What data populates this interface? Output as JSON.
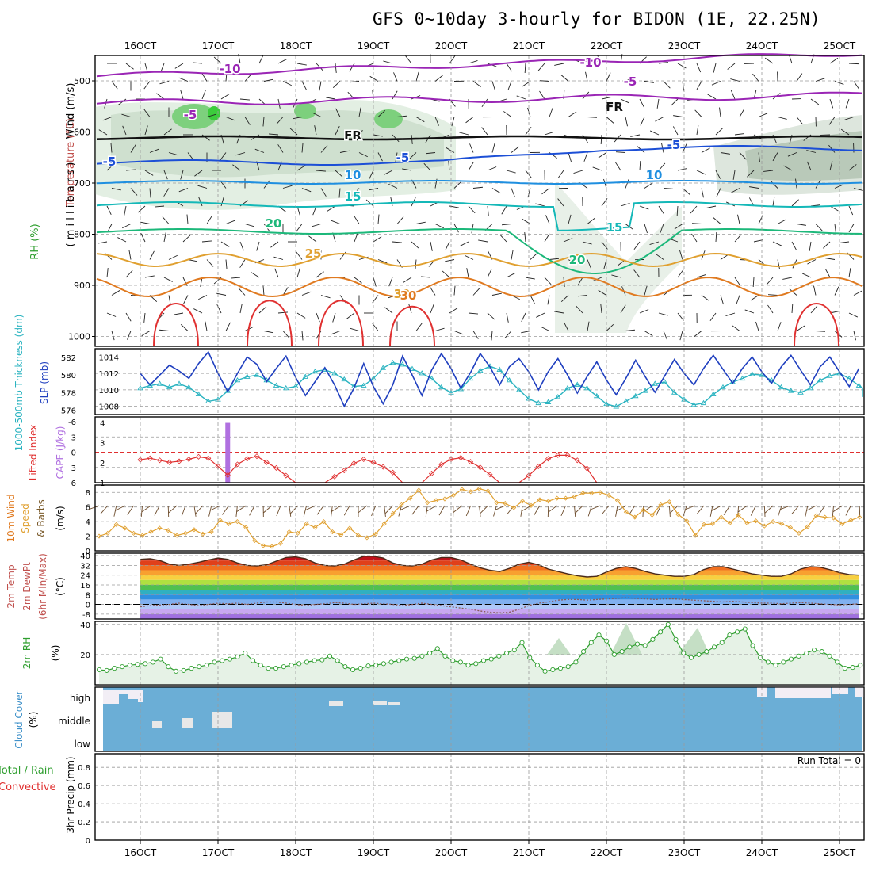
{
  "title": "GFS 0~10day 3-hourly for BIDON (1E, 22.25N)",
  "x_ticks": [
    "16OCT",
    "17OCT",
    "18OCT",
    "19OCT",
    "20OCT",
    "21OCT",
    "22OCT",
    "23OCT",
    "24OCT",
    "25OCT"
  ],
  "colors": {
    "grid": "#9a9a9a",
    "slp": "#1f3fbf",
    "thickness": "#2ab3c0",
    "lifted_index": "#e03030",
    "cape": "#b070e0",
    "wind_speed": "#e0a030",
    "rh": "#2e9e2e",
    "cloud": "#6baed6",
    "precip_total": "#2e9e2e",
    "precip_convective": "#e03030"
  },
  "panels": {
    "upper": {
      "ylabel_wind": "Wind (m/s)",
      "ylabel_temp": "Temperature (°C)",
      "ylabel_rh": "RH (%)",
      "ylabel_units": "( m i l l i b a r s )",
      "y_ticks": [
        "500",
        "600",
        "700",
        "800",
        "900",
        "1000"
      ],
      "contour_labels": [
        "-10",
        "-10",
        "-5",
        "-5",
        "FR",
        "FR",
        "-5",
        "-5",
        "-5",
        "10",
        "10",
        "15",
        "15",
        "20",
        "20",
        "25",
        "30",
        "30"
      ]
    },
    "slp": {
      "ylabel_left": "1000-500mb Thickness (dm)",
      "ylabel_right": "SLP (mb)",
      "left_ticks": [
        "582",
        "580",
        "578",
        "576"
      ],
      "right_ticks": [
        "1014",
        "1012",
        "1010",
        "1008"
      ]
    },
    "cape": {
      "ylabel_left": "Lifted Index",
      "ylabel_right": "CAPE (J/kg)",
      "left_ticks": [
        "-6",
        "-3",
        "0",
        "3",
        "6"
      ],
      "right_ticks": [
        "4",
        "3",
        "2",
        "1"
      ]
    },
    "wind10": {
      "ylabel_1": "10m Wind",
      "ylabel_2": "Speed",
      "ylabel_3": "& Barbs",
      "ylabel_units": "(m/s)",
      "y_ticks": [
        "8",
        "6",
        "4",
        "2",
        "0"
      ]
    },
    "temp": {
      "ylabel_1": "2m Temp",
      "ylabel_2": "2m DewPt",
      "ylabel_3": "(6hr Min/Max)",
      "ylabel_units": "(°C)",
      "y_ticks": [
        "40",
        "32",
        "24",
        "16",
        "8",
        "0",
        "-8"
      ]
    },
    "rh": {
      "ylabel": "2m RH",
      "ylabel_units": "(%)",
      "y_ticks": [
        "40",
        "20"
      ]
    },
    "cloud": {
      "ylabel": "Cloud Cover",
      "ylabel_units": "(%)",
      "levels": [
        "high",
        "middle",
        "low"
      ]
    },
    "precip": {
      "ylabel_total": "Total / Rain",
      "ylabel_conv": "Convective",
      "ylabel_units": "3hr Precip (mm)",
      "y_ticks": [
        "0.8",
        "0.6",
        "0.4",
        "0.2",
        "0"
      ],
      "run_total": "Run Total = 0"
    }
  },
  "chart_data": [
    {
      "type": "line",
      "name_left": "1000-500mb Thickness (dm)",
      "name_right": "SLP (mb)",
      "x_start": "15OCT 12Z",
      "x_step_hours": 3,
      "series": [
        {
          "axis": "right",
          "ylim": [
            1007,
            1015
          ],
          "values": [
            1012.0,
            1010.6,
            1011.8,
            1013.0,
            1012.3,
            1011.4,
            1013.2,
            1014.6,
            1012.0,
            1009.8,
            1012.0,
            1014.0,
            1013.1,
            1011.0,
            1012.6,
            1014.1,
            1011.5,
            1009.3,
            1011.0,
            1012.7,
            1010.6,
            1008.0,
            1010.2,
            1013.2,
            1010.4,
            1008.3,
            1010.6,
            1014.1,
            1011.8,
            1009.3,
            1012.4,
            1014.4,
            1012.6,
            1010.2,
            1012.1,
            1014.4,
            1012.8,
            1010.6,
            1012.8,
            1013.8,
            1012.2,
            1010.0,
            1012.2,
            1013.8,
            1011.8,
            1009.6,
            1011.6,
            1013.4,
            1011.2,
            1009.4,
            1011.4,
            1013.6,
            1011.6,
            1009.7,
            1011.7,
            1013.7,
            1012.0,
            1010.6,
            1012.6,
            1014.2,
            1012.5,
            1010.8,
            1012.6,
            1014.0,
            1012.2,
            1010.8,
            1012.8,
            1014.2,
            1012.4,
            1010.6,
            1012.8,
            1014.0,
            1012.2,
            1010.4,
            1012.6,
            1013.6,
            1012.0,
            1011.2,
            1012.5
          ]
        },
        {
          "axis": "left",
          "ylim": [
            575.5,
            583
          ],
          "values": [
            578.5,
            578.8,
            579.0,
            578.6,
            579.0,
            578.6,
            577.8,
            577.0,
            577.2,
            578.2,
            579.4,
            579.8,
            580.0,
            579.4,
            578.8,
            578.5,
            578.7,
            579.8,
            580.4,
            580.6,
            580.2,
            579.5,
            578.7,
            578.8,
            579.6,
            580.8,
            581.4,
            581.2,
            580.7,
            580.2,
            579.6,
            578.6,
            578.0,
            578.4,
            579.6,
            580.5,
            581.0,
            580.6,
            579.4,
            578.3,
            577.3,
            576.8,
            576.9,
            577.5,
            578.5,
            578.9,
            578.5,
            577.6,
            576.7,
            576.4,
            577.0,
            577.6,
            578.2,
            579.0,
            579.2,
            578.0,
            577.2,
            576.6,
            576.8,
            577.8,
            578.6,
            579.2,
            579.6,
            580.1,
            580.0,
            579.4,
            578.6,
            578.2,
            578.0,
            578.5,
            579.4,
            579.9,
            580.2,
            579.6,
            578.8,
            578.5,
            578.6,
            578.3,
            577.5
          ]
        }
      ]
    },
    {
      "type": "line",
      "name": "Lifted Index",
      "ylim": [
        6,
        -6
      ],
      "values": [
        1.5,
        1.2,
        1.6,
        2.0,
        1.8,
        1.4,
        0.9,
        1.2,
        2.8,
        4.5,
        2.4,
        1.3,
        0.8,
        2.0,
        3.1,
        4.6,
        6.0,
        6.0,
        6.0,
        6.0,
        4.8,
        3.6,
        2.2,
        1.4,
        2.0,
        2.9,
        4.0,
        6.0,
        6.0,
        6.0,
        4.2,
        2.4,
        1.4,
        1.1,
        1.9,
        3.0,
        4.4,
        6.0,
        6.0,
        6.0,
        4.6,
        2.8,
        1.3,
        0.6,
        0.6,
        1.6,
        3.2,
        6.0
      ]
    },
    {
      "type": "bar",
      "name": "CAPE (J/kg)",
      "ylim": [
        1,
        4.3
      ],
      "values": [
        {
          "x_step": 9,
          "value": 4.0
        }
      ]
    },
    {
      "type": "line",
      "name": "10m Wind Speed (m/s)",
      "ylim": [
        0,
        9
      ],
      "values": [
        2.0,
        2.4,
        3.6,
        3.1,
        2.4,
        2.1,
        2.6,
        3.1,
        2.8,
        2.1,
        2.4,
        2.9,
        2.3,
        2.6,
        4.2,
        3.7,
        4.0,
        3.2,
        1.4,
        0.7,
        0.6,
        1.0,
        2.6,
        2.4,
        3.7,
        3.2,
        4.0,
        2.6,
        2.2,
        3.1,
        2.1,
        1.8,
        2.3,
        3.7,
        5.1,
        6.3,
        7.2,
        8.3,
        6.6,
        6.9,
        7.1,
        7.6,
        8.4,
        8.1,
        8.5,
        8.2,
        6.6,
        6.5,
        5.9,
        6.8,
        6.2,
        7.0,
        6.8,
        7.2,
        7.2,
        7.4,
        7.9,
        7.9,
        8.0,
        7.6,
        6.9,
        5.3,
        4.6,
        5.6,
        4.9,
        6.3,
        6.7,
        5.0,
        4.1,
        2.1,
        3.6,
        3.7,
        4.6,
        3.8,
        4.9,
        3.8,
        4.1,
        3.4,
        4.0,
        3.7,
        3.2,
        2.4,
        3.3,
        4.8,
        4.6,
        4.5,
        3.7,
        4.2,
        4.6
      ]
    },
    {
      "type": "area",
      "name": "2m Temp (°C)",
      "ylim": [
        -12,
        42
      ],
      "values": [
        37,
        37.5,
        36,
        33,
        32,
        33,
        34.5,
        36.5,
        38,
        37,
        34,
        32,
        31.5,
        32.5,
        35.5,
        38.5,
        39,
        37.5,
        34,
        32,
        31.5,
        33,
        36.5,
        39.5,
        39.5,
        38,
        34,
        32,
        31.5,
        33,
        36.5,
        38.5,
        38.5,
        36.5,
        33,
        30,
        28,
        27,
        29.5,
        33,
        34.5,
        32.5,
        29,
        27,
        25,
        23.5,
        22.5,
        23,
        26.5,
        29.5,
        31,
        29.5,
        27,
        25,
        24,
        23,
        23,
        24.5,
        28.5,
        31,
        31,
        29,
        27,
        25,
        24,
        23,
        23,
        25,
        29,
        31,
        30.5,
        28.5,
        26,
        24.5,
        24,
        24.5,
        28.5,
        32.5,
        35.5,
        34,
        30.5,
        27.5,
        26,
        24.5,
        24
      ]
    },
    {
      "type": "line",
      "name": "2m DewPt (°C)",
      "ylim": [
        -12,
        42
      ],
      "values": [
        -2,
        -1,
        -0.5,
        0,
        1,
        0,
        -1,
        0,
        1,
        0.5,
        1,
        0,
        1,
        2,
        2,
        1,
        0,
        -1,
        0,
        0.5,
        1.5,
        1,
        0,
        0.5,
        1,
        0.5,
        0,
        -1,
        0,
        1,
        0,
        -1,
        -2,
        -3,
        -4,
        -5.5,
        -6.5,
        -7,
        -6.5,
        -4,
        -1,
        1,
        2,
        3.5,
        4,
        4,
        3.5,
        4,
        4.5,
        5,
        5.5,
        5,
        4.5,
        4,
        4.5,
        4.5,
        4,
        3.5,
        3,
        2.5,
        2,
        2.5,
        2,
        1.5,
        1,
        1,
        0.5,
        1,
        1.5,
        1,
        0.5,
        0,
        -0.5,
        0,
        0.5,
        1,
        0,
        -1,
        -0.5,
        0,
        0.5,
        1,
        0.5,
        0,
        0.5
      ]
    },
    {
      "type": "area",
      "name": "2m RH (%)",
      "ylim": [
        0,
        42
      ],
      "values": [
        10,
        9.5,
        11,
        12,
        13,
        13.5,
        14,
        15,
        17,
        12,
        9,
        9.5,
        11,
        12,
        13,
        15,
        16,
        17,
        18.5,
        21,
        16,
        13,
        11,
        11,
        12,
        13,
        14,
        15,
        16,
        16.5,
        19,
        16,
        12,
        10,
        11,
        12.5,
        13,
        14,
        15,
        16,
        17,
        17.5,
        19,
        21,
        24,
        19,
        16,
        15,
        13,
        14,
        16,
        17,
        19,
        21,
        23,
        28,
        18,
        13,
        9,
        10,
        11,
        12,
        15,
        22,
        28,
        33,
        29,
        20,
        22,
        25,
        27,
        26,
        30,
        35,
        40,
        30,
        21,
        18,
        20,
        22,
        25,
        28,
        33,
        35,
        37,
        26,
        18,
        15,
        13,
        15,
        17,
        19,
        21,
        23,
        22,
        19,
        15,
        11,
        11.5,
        13,
        15,
        18,
        20,
        22,
        24
      ]
    }
  ]
}
